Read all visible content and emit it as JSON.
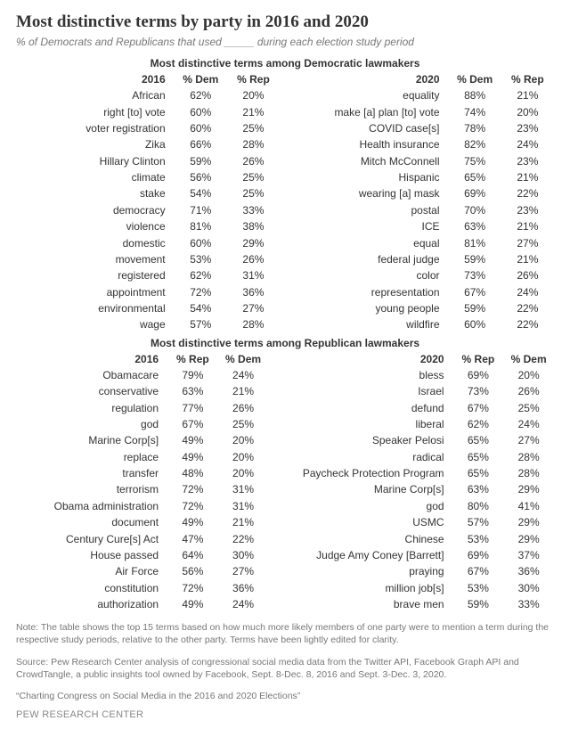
{
  "title": "Most distinctive terms by party in 2016 and 2020",
  "subtitle": "% of Democrats and Republicans that used _____ during each election study period",
  "dem_section_label": "Most distinctive terms among Democratic lawmakers",
  "rep_section_label": "Most distinctive terms among Republican lawmakers",
  "headers": {
    "year2016": "2016",
    "year2020": "2020",
    "pctDem": "% Dem",
    "pctRep": "% Rep"
  },
  "dem2016": [
    {
      "term": "African",
      "p1": "62%",
      "p2": "20%"
    },
    {
      "term": "right [to] vote",
      "p1": "60%",
      "p2": "21%"
    },
    {
      "term": "voter registration",
      "p1": "60%",
      "p2": "25%"
    },
    {
      "term": "Zika",
      "p1": "66%",
      "p2": "28%"
    },
    {
      "term": "Hillary Clinton",
      "p1": "59%",
      "p2": "26%"
    },
    {
      "term": "climate",
      "p1": "56%",
      "p2": "25%"
    },
    {
      "term": "stake",
      "p1": "54%",
      "p2": "25%"
    },
    {
      "term": "democracy",
      "p1": "71%",
      "p2": "33%"
    },
    {
      "term": "violence",
      "p1": "81%",
      "p2": "38%"
    },
    {
      "term": "domestic",
      "p1": "60%",
      "p2": "29%"
    },
    {
      "term": "movement",
      "p1": "53%",
      "p2": "26%"
    },
    {
      "term": "registered",
      "p1": "62%",
      "p2": "31%"
    },
    {
      "term": "appointment",
      "p1": "72%",
      "p2": "36%"
    },
    {
      "term": "environmental",
      "p1": "54%",
      "p2": "27%"
    },
    {
      "term": "wage",
      "p1": "57%",
      "p2": "28%"
    }
  ],
  "dem2020": [
    {
      "term": "equality",
      "p1": "88%",
      "p2": "21%"
    },
    {
      "term": "make [a] plan [to] vote",
      "p1": "74%",
      "p2": "20%"
    },
    {
      "term": "COVID case[s]",
      "p1": "78%",
      "p2": "23%"
    },
    {
      "term": "Health insurance",
      "p1": "82%",
      "p2": "24%"
    },
    {
      "term": "Mitch McConnell",
      "p1": "75%",
      "p2": "23%"
    },
    {
      "term": "Hispanic",
      "p1": "65%",
      "p2": "21%"
    },
    {
      "term": "wearing [a] mask",
      "p1": "69%",
      "p2": "22%"
    },
    {
      "term": "postal",
      "p1": "70%",
      "p2": "23%"
    },
    {
      "term": "ICE",
      "p1": "63%",
      "p2": "21%"
    },
    {
      "term": "equal",
      "p1": "81%",
      "p2": "27%"
    },
    {
      "term": "federal judge",
      "p1": "59%",
      "p2": "21%"
    },
    {
      "term": "color",
      "p1": "73%",
      "p2": "26%"
    },
    {
      "term": "representation",
      "p1": "67%",
      "p2": "24%"
    },
    {
      "term": "young people",
      "p1": "59%",
      "p2": "22%"
    },
    {
      "term": "wildfire",
      "p1": "60%",
      "p2": "22%"
    }
  ],
  "rep2016": [
    {
      "term": "Obamacare",
      "p1": "79%",
      "p2": "24%"
    },
    {
      "term": "conservative",
      "p1": "63%",
      "p2": "21%"
    },
    {
      "term": "regulation",
      "p1": "77%",
      "p2": "26%"
    },
    {
      "term": "god",
      "p1": "67%",
      "p2": "25%"
    },
    {
      "term": "Marine Corp[s]",
      "p1": "49%",
      "p2": "20%"
    },
    {
      "term": "replace",
      "p1": "49%",
      "p2": "20%"
    },
    {
      "term": "transfer",
      "p1": "48%",
      "p2": "20%"
    },
    {
      "term": "terrorism",
      "p1": "72%",
      "p2": "31%"
    },
    {
      "term": "Obama administration",
      "p1": "72%",
      "p2": "31%"
    },
    {
      "term": "document",
      "p1": "49%",
      "p2": "21%"
    },
    {
      "term": "Century Cure[s] Act",
      "p1": "47%",
      "p2": "22%"
    },
    {
      "term": "House passed",
      "p1": "64%",
      "p2": "30%"
    },
    {
      "term": "Air Force",
      "p1": "56%",
      "p2": "27%"
    },
    {
      "term": "constitution",
      "p1": "72%",
      "p2": "36%"
    },
    {
      "term": "authorization",
      "p1": "49%",
      "p2": "24%"
    }
  ],
  "rep2020": [
    {
      "term": "bless",
      "p1": "69%",
      "p2": "20%"
    },
    {
      "term": "Israel",
      "p1": "73%",
      "p2": "26%"
    },
    {
      "term": "defund",
      "p1": "67%",
      "p2": "25%"
    },
    {
      "term": "liberal",
      "p1": "62%",
      "p2": "24%"
    },
    {
      "term": "Speaker Pelosi",
      "p1": "65%",
      "p2": "27%"
    },
    {
      "term": "radical",
      "p1": "65%",
      "p2": "28%"
    },
    {
      "term": "Paycheck Protection Program",
      "p1": "65%",
      "p2": "28%"
    },
    {
      "term": "Marine Corp[s]",
      "p1": "63%",
      "p2": "29%"
    },
    {
      "term": "god",
      "p1": "80%",
      "p2": "41%"
    },
    {
      "term": "USMC",
      "p1": "57%",
      "p2": "29%"
    },
    {
      "term": "Chinese",
      "p1": "53%",
      "p2": "29%"
    },
    {
      "term": "Judge Amy Coney [Barrett]",
      "p1": "69%",
      "p2": "37%"
    },
    {
      "term": "praying",
      "p1": "67%",
      "p2": "36%"
    },
    {
      "term": "million job[s]",
      "p1": "53%",
      "p2": "30%"
    },
    {
      "term": "brave men",
      "p1": "59%",
      "p2": "33%"
    }
  ],
  "note1": "Note: The table shows the top 15 terms based on how much more likely members of one party were to mention a term during the respective study periods, relative to the other party. Terms have been lightly edited for clarity.",
  "note2": "Source: Pew Research Center analysis of congressional social media data from the Twitter API, Facebook Graph API and CrowdTangle, a public insights tool owned by Facebook, Sept. 8-Dec. 8, 2016 and Sept. 3-Dec. 3, 2020.",
  "note3": "“Charting Congress on Social Media in the 2016 and 2020 Elections”",
  "footer": "PEW RESEARCH CENTER"
}
